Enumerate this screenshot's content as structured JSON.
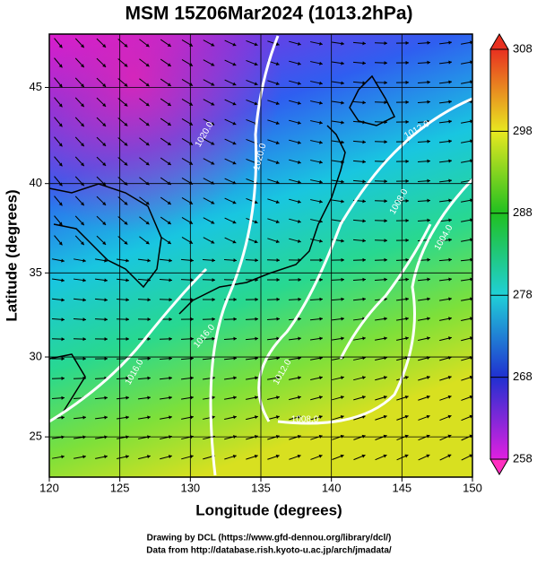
{
  "title": "MSM 15Z06Mar2024 (1013.2hPa)",
  "x_axis": {
    "label": "Longitude (degrees)",
    "lim": [
      120,
      150
    ],
    "ticks": [
      120,
      125,
      130,
      135,
      140,
      145,
      150
    ]
  },
  "y_axis": {
    "label": "Latitude  (degrees)",
    "lim": [
      22.4,
      47.6
    ],
    "ticks": [
      25,
      30,
      35,
      40,
      45
    ],
    "projection": "mercator"
  },
  "colorbar": {
    "lim": [
      258,
      308
    ],
    "ticks": [
      258,
      268,
      278,
      288,
      298,
      308
    ]
  },
  "contour_labels": [
    "1020.0",
    "1020.0",
    "1016.0",
    "1016.0",
    "1012.0",
    "1012.0",
    "1008.0",
    "1008.0",
    "1004.0"
  ],
  "credits": [
    "Drawing by DCL (https://www.gfd-dennou.org/library/dcl/)",
    "Data from http://database.rish.kyoto-u.ac.jp/arch/jmadata/"
  ]
}
